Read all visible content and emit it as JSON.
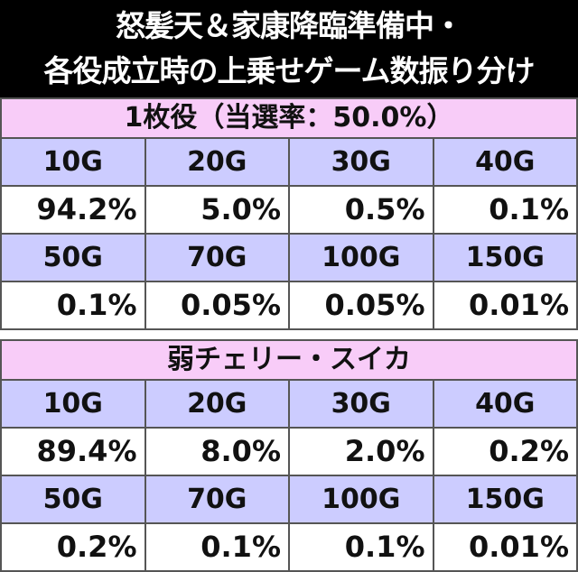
{
  "title": {
    "lines": [
      "怒髪天＆家康降臨準備中・",
      "各役成立時の上乗せゲーム数振り分け"
    ]
  },
  "tables": [
    {
      "heading": "1枚役（当選率：50.0%）",
      "rows": [
        {
          "headers": [
            "10G",
            "20G",
            "30G",
            "40G"
          ],
          "values": [
            "94.2%",
            "5.0%",
            "0.5%",
            "0.1%"
          ]
        },
        {
          "headers": [
            "50G",
            "70G",
            "100G",
            "150G"
          ],
          "values": [
            "0.1%",
            "0.05%",
            "0.05%",
            "0.01%"
          ]
        }
      ]
    },
    {
      "heading": "弱チェリー・スイカ",
      "rows": [
        {
          "headers": [
            "10G",
            "20G",
            "30G",
            "40G"
          ],
          "values": [
            "89.4%",
            "8.0%",
            "2.0%",
            "0.2%"
          ]
        },
        {
          "headers": [
            "50G",
            "70G",
            "100G",
            "150G"
          ],
          "values": [
            "0.2%",
            "0.1%",
            "0.1%",
            "0.01%"
          ]
        }
      ]
    }
  ]
}
